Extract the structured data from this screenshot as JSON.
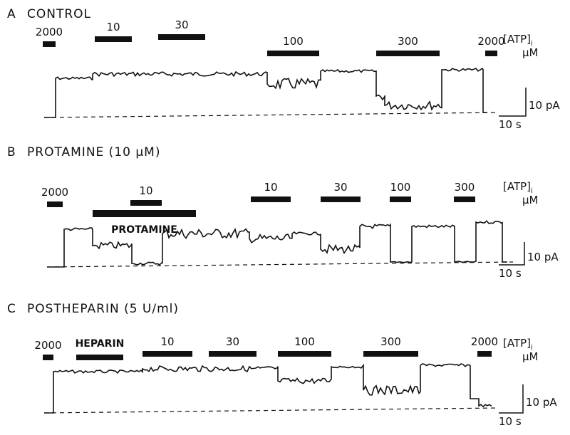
{
  "panels": [
    {
      "letter": "A",
      "title": "CONTROL",
      "bars": [
        "2000",
        "10",
        "30",
        "100",
        "300",
        "2000"
      ],
      "conc_label": "[ATP]",
      "conc_sub": "i",
      "conc_unit": "μM",
      "scale_current": "10 pA",
      "scale_time": "10 s"
    },
    {
      "letter": "B",
      "title": "PROTAMINE (10 μM)",
      "bars": [
        "2000",
        "10",
        "10",
        "30",
        "100",
        "300"
      ],
      "drug": "PROTAMINE",
      "conc_label": "[ATP]",
      "conc_sub": "i",
      "conc_unit": "μM",
      "scale_current": "10 pA",
      "scale_time": "10 s"
    },
    {
      "letter": "C",
      "title": "POSTHEPARIN (5 U/ml)",
      "bars": [
        "2000",
        "10",
        "30",
        "100",
        "300",
        "2000"
      ],
      "drug": "HEPARIN",
      "conc_label": "[ATP]",
      "conc_sub": "i",
      "conc_unit": "μM",
      "scale_current": "10 pA",
      "scale_time": "10 s"
    }
  ]
}
